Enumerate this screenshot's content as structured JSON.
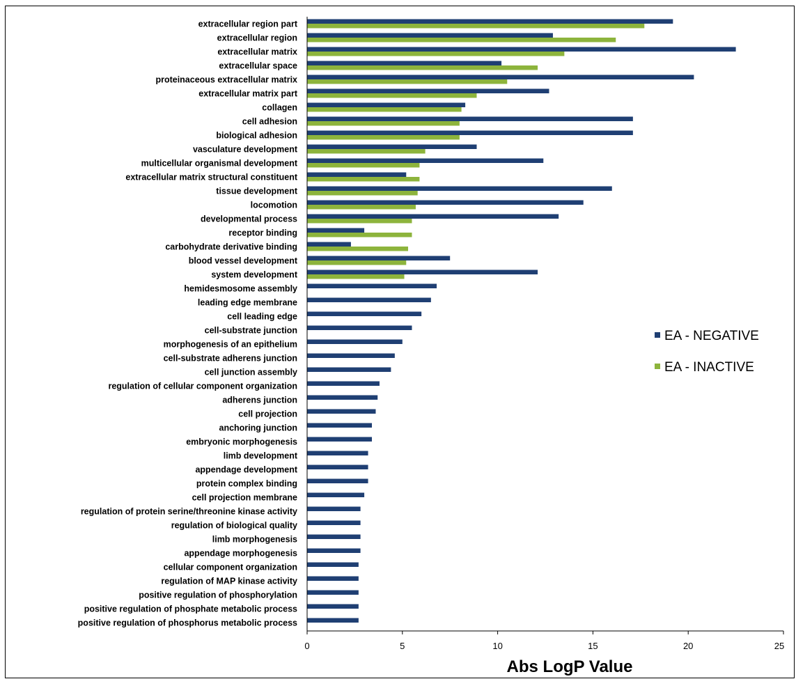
{
  "chart_data": {
    "type": "bar",
    "orientation": "horizontal",
    "title": "",
    "xlabel": "Abs LogP Value",
    "ylabel": "",
    "xlim": [
      0,
      25
    ],
    "x_ticks": [
      "0",
      "5",
      "10",
      "15",
      "20",
      "25"
    ],
    "grid": false,
    "legend_position": "right",
    "categories": [
      "extracellular region part",
      "extracellular region",
      "extracellular matrix",
      "extracellular space",
      "proteinaceous extracellular matrix",
      "extracellular matrix part",
      "collagen",
      "cell adhesion",
      "biological adhesion",
      "vasculature development",
      "multicellular organismal development",
      "extracellular matrix structural constituent",
      "tissue development",
      "locomotion",
      "developmental process",
      "receptor binding",
      "carbohydrate derivative binding",
      "blood vessel development",
      "system development",
      "hemidesmosome assembly",
      "leading edge membrane",
      "cell leading edge",
      "cell-substrate junction",
      "morphogenesis of an epithelium",
      "cell-substrate adherens junction",
      "cell junction assembly",
      "regulation of cellular component organization",
      "adherens junction",
      "cell projection",
      "anchoring junction",
      "embryonic morphogenesis",
      "limb development",
      "appendage development",
      "protein complex binding",
      "cell projection membrane",
      "regulation of protein serine/threonine kinase activity",
      "regulation of biological quality",
      "limb morphogenesis",
      "appendage morphogenesis",
      "cellular component organization",
      "regulation of MAP kinase activity",
      "positive regulation of phosphorylation",
      "positive regulation of phosphate metabolic process",
      "positive regulation of phosphorus metabolic process"
    ],
    "series": [
      {
        "name": "EA - NEGATIVE",
        "color": "#1f3f73",
        "values": [
          19.2,
          12.9,
          22.5,
          10.2,
          20.3,
          12.7,
          8.3,
          17.1,
          17.1,
          8.9,
          12.4,
          5.2,
          16.0,
          14.5,
          13.2,
          3.0,
          2.3,
          7.5,
          12.1,
          6.8,
          6.5,
          6.0,
          5.5,
          5.0,
          4.6,
          4.4,
          3.8,
          3.7,
          3.6,
          3.4,
          3.4,
          3.2,
          3.2,
          3.2,
          3.0,
          2.8,
          2.8,
          2.8,
          2.8,
          2.7,
          2.7,
          2.7,
          2.7,
          2.7
        ]
      },
      {
        "name": "EA - INACTIVE",
        "color": "#8db43c",
        "values": [
          17.7,
          16.2,
          13.5,
          12.1,
          10.5,
          8.9,
          8.1,
          8.0,
          8.0,
          6.2,
          5.9,
          5.9,
          5.8,
          5.7,
          5.5,
          5.5,
          5.3,
          5.2,
          5.1,
          null,
          null,
          null,
          null,
          null,
          null,
          null,
          null,
          null,
          null,
          null,
          null,
          null,
          null,
          null,
          null,
          null,
          null,
          null,
          null,
          null,
          null,
          null,
          null,
          null
        ]
      }
    ]
  }
}
